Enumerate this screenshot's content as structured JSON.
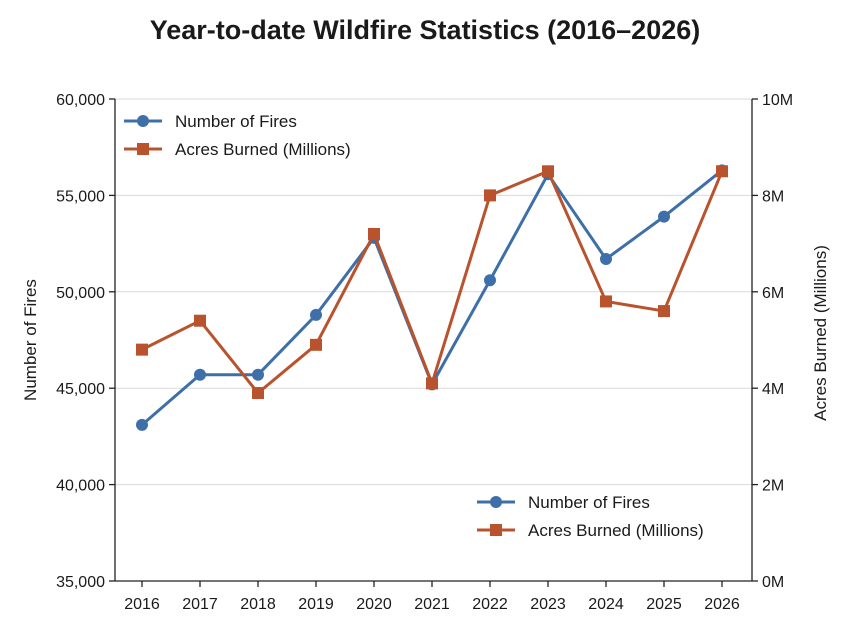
{
  "chart_data": {
    "type": "line",
    "title": "Year-to-date Wildfire Statistics (2016–2026)",
    "xlabel": "",
    "ylabel": "Number of Fires",
    "y2label": "Acres Burned (Millions)",
    "x": [
      2016,
      2017,
      2018,
      2019,
      2020,
      2021,
      2022,
      2023,
      2024,
      2025,
      2026
    ],
    "ylim": [
      35000,
      60000
    ],
    "y2lim": [
      0,
      10
    ],
    "yticks": [
      "35,000",
      "40,000",
      "45,000",
      "50,000",
      "55,000",
      "60,000"
    ],
    "y2ticks": [
      "0M",
      "2M",
      "4M",
      "6M",
      "8M",
      "10M"
    ],
    "grid": true,
    "legend_placement": [
      "top-left",
      "bottom-right"
    ],
    "series": [
      {
        "name": "Number of Fires",
        "axis": "left",
        "marker": "circle",
        "color": "#3e6fa8",
        "values": [
          43100,
          45700,
          45700,
          48800,
          52800,
          45200,
          50600,
          56100,
          51700,
          53900,
          56300
        ]
      },
      {
        "name": "Acres Burned (Millions)",
        "axis": "right",
        "marker": "square",
        "color": "#b8532d",
        "values": [
          4.8,
          5.4,
          3.9,
          4.9,
          7.2,
          4.1,
          8.0,
          8.5,
          5.8,
          5.6,
          8.5
        ]
      }
    ]
  }
}
